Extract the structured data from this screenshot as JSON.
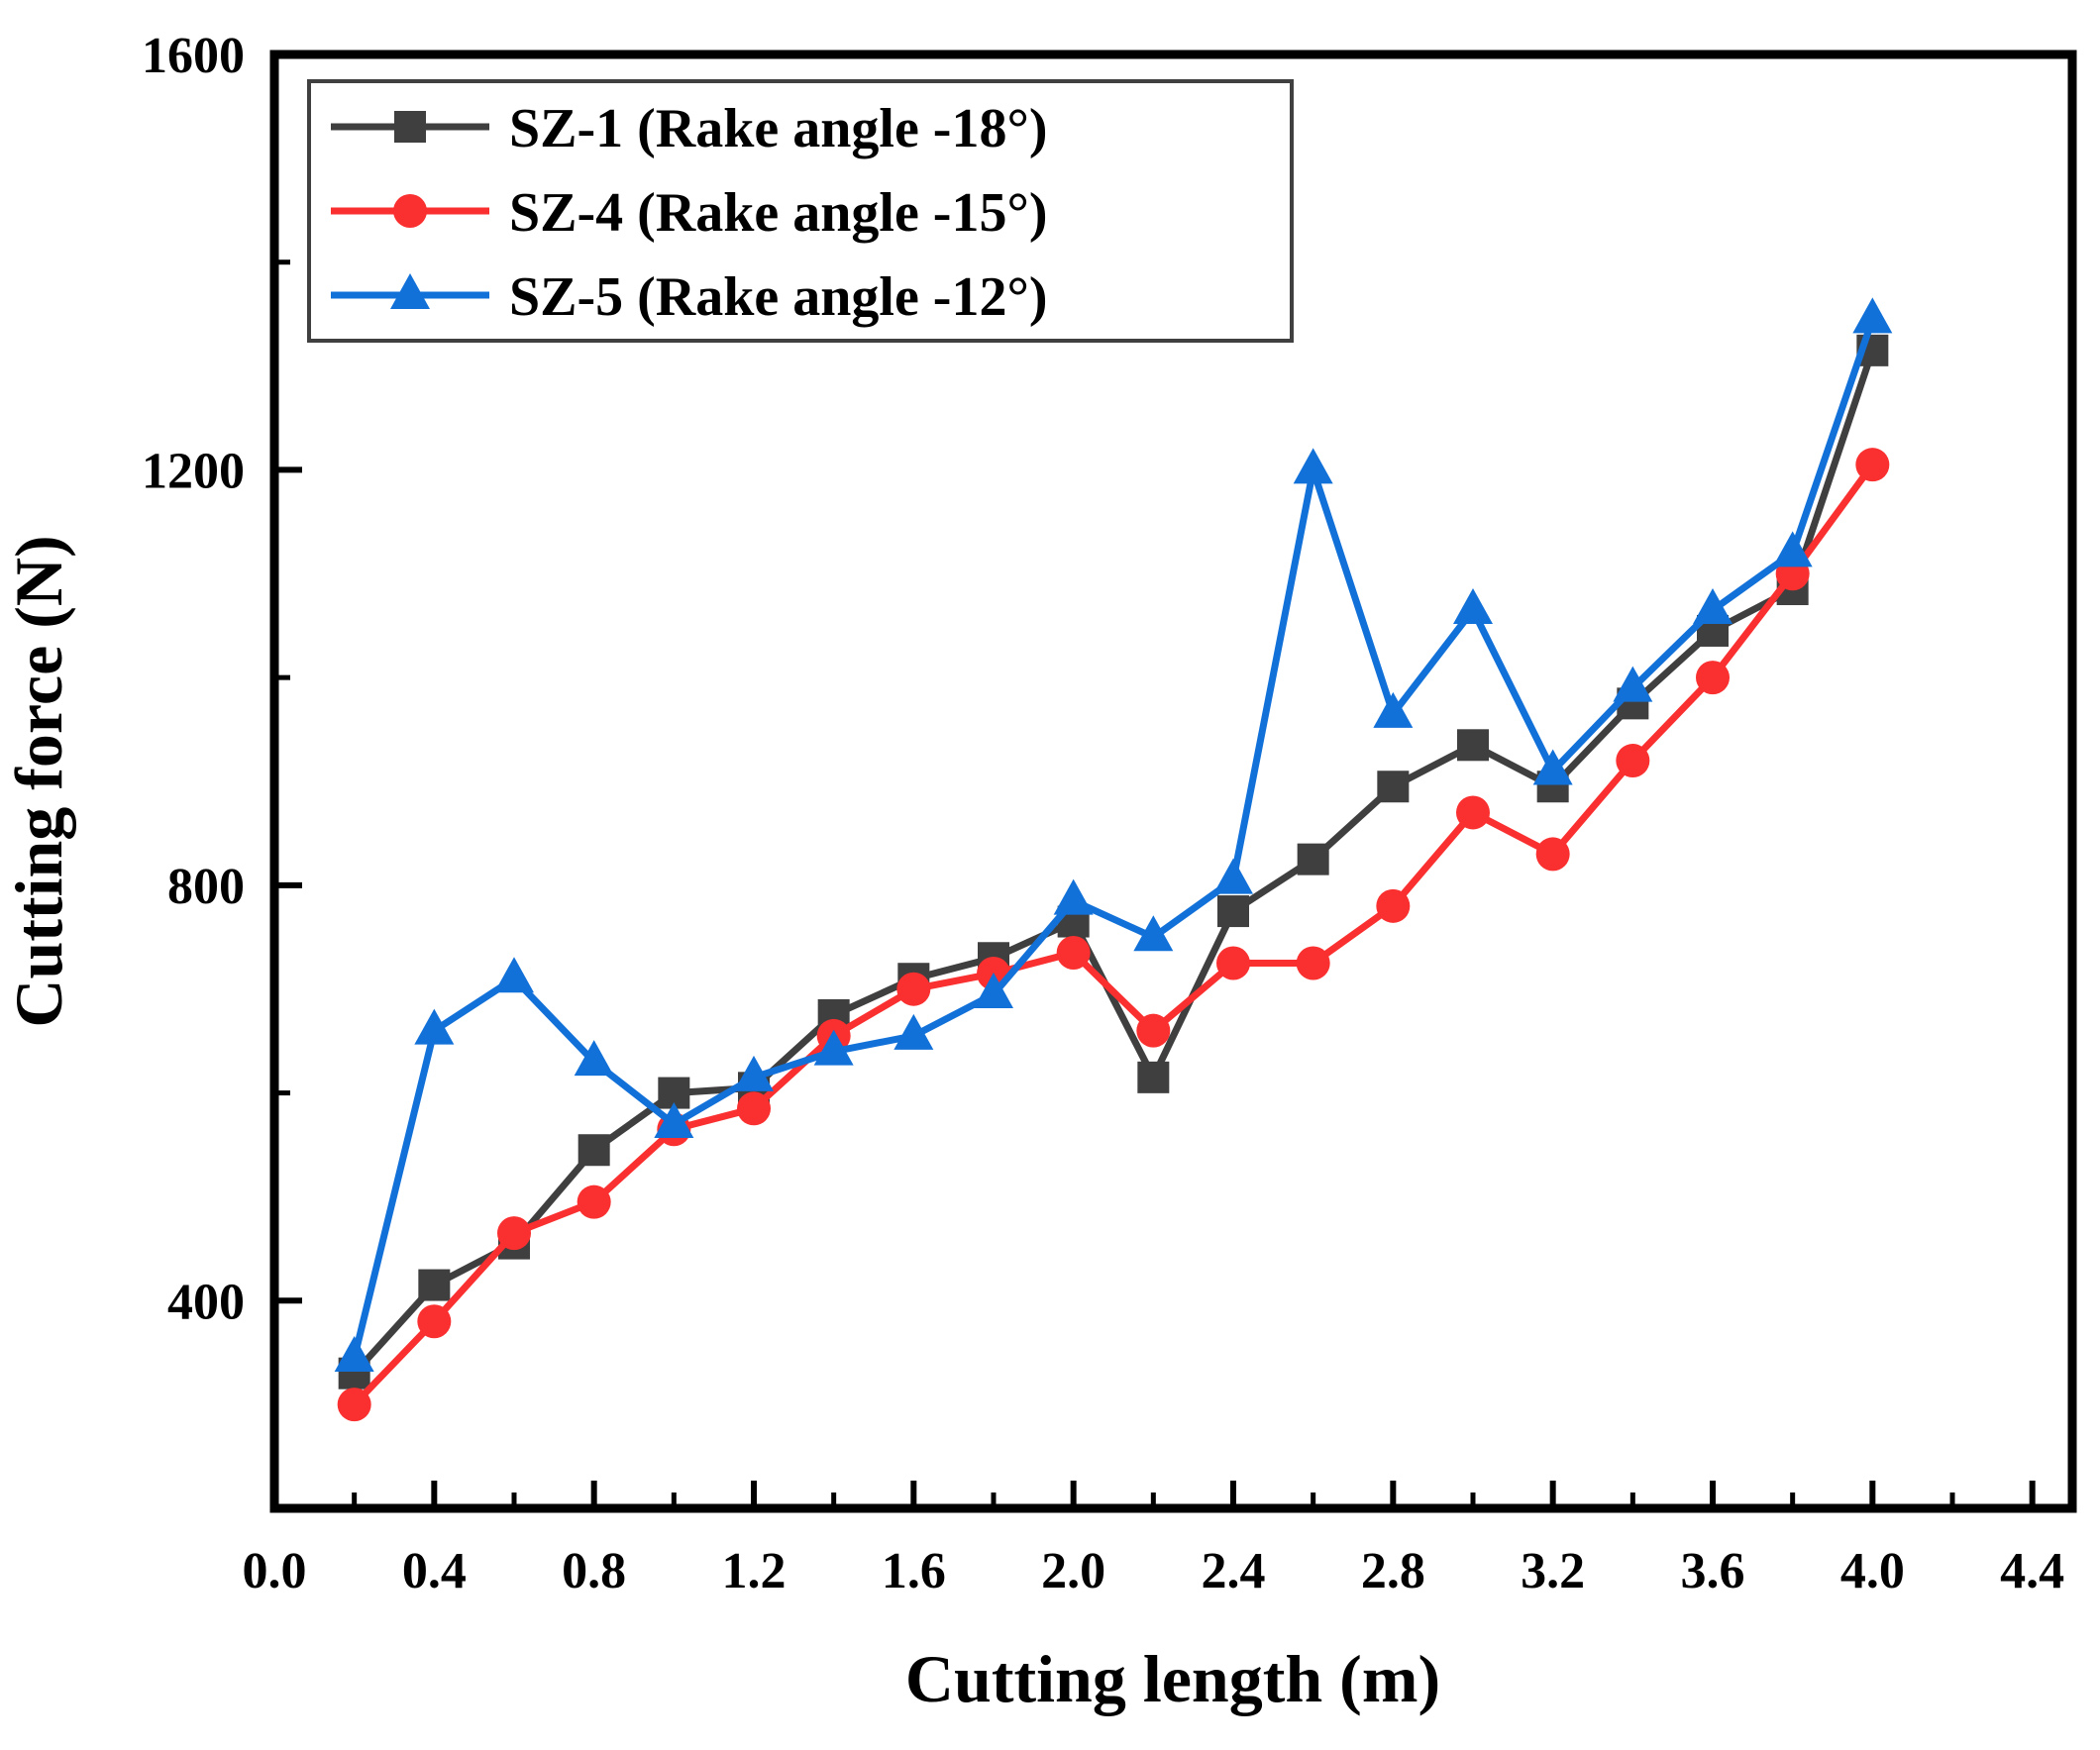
{
  "chart_data": {
    "type": "line",
    "title": "",
    "xlabel": "Cutting length (m)",
    "ylabel": "Cutting force (N)",
    "xlim": [
      0.0,
      4.5
    ],
    "ylim": [
      200,
      1600
    ],
    "grid": false,
    "legend_position": "top-left",
    "background_color": "#ffffff",
    "axis": {
      "x_major_tick_values": [
        0.0,
        0.4,
        0.8,
        1.2,
        1.6,
        2.0,
        2.4,
        2.8,
        3.2,
        3.6,
        4.0,
        4.4
      ],
      "x_tick_labels": [
        "0.0",
        "0.4",
        "0.8",
        "1.2",
        "1.6",
        "2.0",
        "2.4",
        "2.8",
        "3.2",
        "3.6",
        "4.0",
        "4.4"
      ],
      "x_minor_tick_values": [
        0.2,
        0.6,
        1.0,
        1.4,
        1.8,
        2.2,
        2.6,
        3.0,
        3.4,
        3.8,
        4.2
      ],
      "y_major_tick_values": [
        400,
        800,
        1200,
        1600
      ],
      "y_tick_labels": [
        "400",
        "800",
        "1200",
        "1600"
      ],
      "y_minor_tick_values": [
        600,
        1000,
        1400
      ]
    },
    "x": [
      0.2,
      0.4,
      0.6,
      0.8,
      1.0,
      1.2,
      1.4,
      1.6,
      1.8,
      2.0,
      2.2,
      2.4,
      2.6,
      2.8,
      3.0,
      3.2,
      3.4,
      3.6,
      3.8,
      4.0
    ],
    "series": [
      {
        "name": "SZ-1 (Rake angle -18°)",
        "color": "#3f3f3f",
        "marker": "square",
        "values": [
          330,
          415,
          455,
          545,
          600,
          605,
          675,
          710,
          730,
          765,
          615,
          775,
          825,
          895,
          935,
          895,
          975,
          1045,
          1085,
          1315
        ]
      },
      {
        "name": "SZ-4 (Rake angle -15°)",
        "color": "#fa2f2f",
        "marker": "circle",
        "values": [
          300,
          380,
          465,
          495,
          565,
          585,
          655,
          700,
          715,
          735,
          660,
          725,
          725,
          780,
          870,
          830,
          920,
          1000,
          1100,
          1205
        ]
      },
      {
        "name": "SZ-5 (Rake angle -12°)",
        "color": "#1271d9",
        "marker": "triangle",
        "values": [
          345,
          660,
          710,
          630,
          570,
          615,
          640,
          655,
          695,
          785,
          750,
          805,
          1200,
          965,
          1065,
          910,
          990,
          1065,
          1120,
          1345
        ]
      }
    ]
  }
}
